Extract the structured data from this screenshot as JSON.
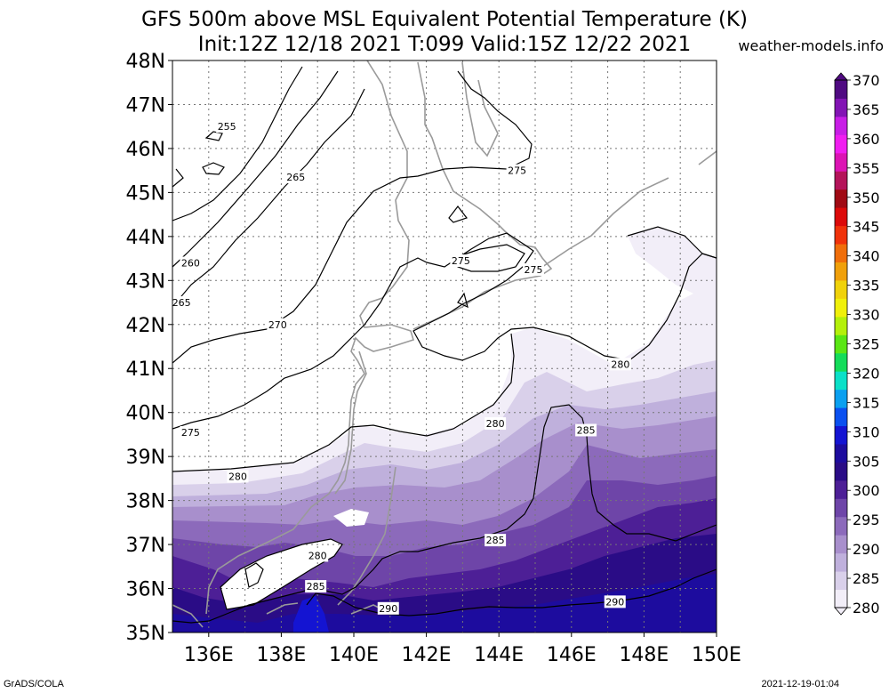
{
  "header": {
    "title_line1": "GFS 500m above MSL Equivalent Potential Temperature (K)",
    "title_line2": "Init:12Z 12/18 2021 T:099 Valid:15Z 12/22 2021",
    "site": "weather-models.info"
  },
  "footer": {
    "left": "GrADS/COLA",
    "right": "2021-12-19-01:04"
  },
  "chart_data": {
    "type": "heatmap",
    "title": "GFS 500m above MSL Equivalent Potential Temperature (K)",
    "subtitle": "Init:12Z 12/18 2021 T:099 Valid:15Z 12/22 2021",
    "x_ticks": [
      "136E",
      "138E",
      "140E",
      "142E",
      "144E",
      "146E",
      "148E",
      "150E"
    ],
    "x_tick_values": [
      136,
      138,
      140,
      142,
      144,
      146,
      148,
      150
    ],
    "xlim": [
      135,
      150
    ],
    "y_ticks": [
      "35N",
      "36N",
      "37N",
      "38N",
      "39N",
      "40N",
      "41N",
      "42N",
      "43N",
      "44N",
      "45N",
      "46N",
      "47N",
      "48N"
    ],
    "y_tick_values": [
      35,
      36,
      37,
      38,
      39,
      40,
      41,
      42,
      43,
      44,
      45,
      46,
      47,
      48
    ],
    "ylim": [
      35,
      48
    ],
    "grid": true,
    "colorbar": {
      "levels": [
        280,
        285,
        290,
        295,
        300,
        305,
        310,
        315,
        320,
        325,
        330,
        335,
        340,
        345,
        350,
        355,
        360,
        365,
        370
      ],
      "labels": [
        "280",
        "285",
        "290",
        "295",
        "300",
        "305",
        "310",
        "315",
        "320",
        "325",
        "330",
        "335",
        "340",
        "345",
        "350",
        "355",
        "360",
        "365",
        "370"
      ],
      "colors": [
        "#f2eef8",
        "#d9d0ea",
        "#bfb0dc",
        "#a88fcc",
        "#8c6abb",
        "#6e45a8",
        "#4d1f96",
        "#2a0c86",
        "#1d0c9e",
        "#1414d2",
        "#0a50f0",
        "#0aa0f0",
        "#0ae0c8",
        "#14dc5a",
        "#5ae614",
        "#b4f00a",
        "#f0f00a",
        "#f0d20a",
        "#f0a00a",
        "#f06e0a",
        "#f0320a",
        "#dc0a0a",
        "#a00a14",
        "#b4145a",
        "#dc14b4",
        "#f01ef0",
        "#c81ee6",
        "#8214b4",
        "#500a82"
      ]
    },
    "contour_labels": [
      {
        "text": "255",
        "lon": 136.5,
        "lat": 46.5
      },
      {
        "text": "265",
        "lon": 138.4,
        "lat": 45.35
      },
      {
        "text": "260",
        "lon": 135.5,
        "lat": 43.4
      },
      {
        "text": "265",
        "lon": 135.25,
        "lat": 42.5
      },
      {
        "text": "270",
        "lon": 137.9,
        "lat": 42.0
      },
      {
        "text": "275",
        "lon": 142.95,
        "lat": 43.45
      },
      {
        "text": "275",
        "lon": 144.95,
        "lat": 43.25
      },
      {
        "text": "275",
        "lon": 144.5,
        "lat": 45.5
      },
      {
        "text": "275",
        "lon": 135.5,
        "lat": 39.55
      },
      {
        "text": "280",
        "lon": 147.35,
        "lat": 41.1
      },
      {
        "text": "280",
        "lon": 143.9,
        "lat": 39.75
      },
      {
        "text": "280",
        "lon": 136.8,
        "lat": 38.55
      },
      {
        "text": "280",
        "lon": 139.0,
        "lat": 36.75
      },
      {
        "text": "285",
        "lon": 146.4,
        "lat": 39.6
      },
      {
        "text": "285",
        "lon": 143.9,
        "lat": 37.1
      },
      {
        "text": "285",
        "lon": 138.95,
        "lat": 36.05
      },
      {
        "text": "290",
        "lon": 147.2,
        "lat": 35.7
      },
      {
        "text": "290",
        "lon": 140.95,
        "lat": 35.55
      }
    ]
  }
}
